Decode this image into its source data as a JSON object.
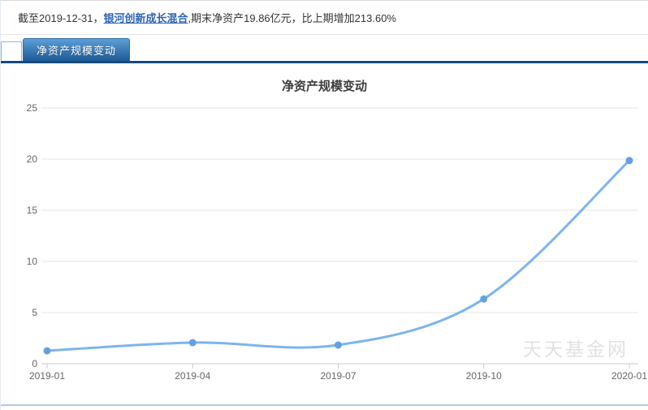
{
  "summary": {
    "prefix": "截至2019-12-31，",
    "fund_link": "银河创新成长混合",
    "suffix": ",期末净资产19.86亿元，比上期增加213.60%"
  },
  "tab": {
    "label": "净资产规模变动"
  },
  "watermark": "天天基金网",
  "colors": {
    "line": "#7cb5ec",
    "marker": "#64a0de",
    "grid": "#e4e4e4",
    "axis": "#c6cdd2",
    "tick": "#c6cdd2",
    "axis_label": "#666666"
  },
  "chart_data": {
    "type": "line",
    "smooth": true,
    "title": "净资产规模变动",
    "categories": [
      "2019-01",
      "2019-04",
      "2019-07",
      "2019-10",
      "2020-01"
    ],
    "values": [
      1.26,
      2.06,
      1.83,
      6.33,
      19.86
    ],
    "ylim": [
      0,
      25
    ],
    "yticks": [
      0,
      5,
      10,
      15,
      20,
      25
    ],
    "xlabel": "",
    "ylabel": "",
    "grid": true,
    "legend": "none"
  }
}
